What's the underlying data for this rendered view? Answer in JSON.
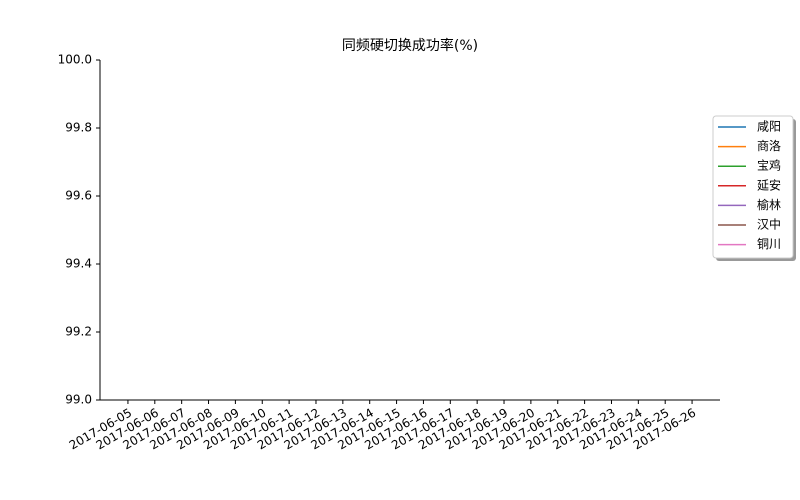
{
  "chart_data": {
    "type": "line",
    "title": "同频硬切换成功率(%)",
    "categories": [
      "2017-06-05",
      "2017-06-06",
      "2017-06-07",
      "2017-06-08",
      "2017-06-09",
      "2017-06-10",
      "2017-06-11",
      "2017-06-12",
      "2017-06-13",
      "2017-06-14",
      "2017-06-15",
      "2017-06-16",
      "2017-06-17",
      "2017-06-18",
      "2017-06-19",
      "2017-06-20",
      "2017-06-21",
      "2017-06-22",
      "2017-06-23",
      "2017-06-24",
      "2017-06-25",
      "2017-06-26"
    ],
    "series": [
      {
        "name": "咸阳",
        "color": "#1f77b4",
        "values": [
          null,
          null,
          null,
          null,
          null,
          null,
          null,
          null,
          null,
          null,
          null,
          null,
          null,
          null,
          null,
          null,
          null,
          null,
          null,
          null,
          null,
          null
        ]
      },
      {
        "name": "商洛",
        "color": "#ff7f0e",
        "values": [
          null,
          null,
          null,
          null,
          null,
          null,
          null,
          null,
          null,
          null,
          null,
          null,
          null,
          null,
          null,
          null,
          null,
          null,
          null,
          null,
          null,
          null
        ]
      },
      {
        "name": "宝鸡",
        "color": "#2ca02c",
        "values": [
          null,
          null,
          null,
          null,
          null,
          null,
          null,
          null,
          null,
          null,
          null,
          null,
          null,
          null,
          null,
          null,
          null,
          null,
          null,
          null,
          null,
          null
        ]
      },
      {
        "name": "延安",
        "color": "#d62728",
        "values": [
          null,
          null,
          null,
          null,
          null,
          null,
          null,
          null,
          null,
          null,
          null,
          null,
          null,
          null,
          null,
          null,
          null,
          null,
          null,
          null,
          null,
          null
        ]
      },
      {
        "name": "榆林",
        "color": "#9467bd",
        "values": [
          null,
          null,
          null,
          null,
          null,
          null,
          null,
          null,
          null,
          null,
          null,
          null,
          null,
          null,
          null,
          null,
          null,
          null,
          null,
          null,
          null,
          null
        ]
      },
      {
        "name": "汉中",
        "color": "#8c564b",
        "values": [
          null,
          null,
          null,
          null,
          null,
          null,
          null,
          null,
          null,
          null,
          null,
          null,
          null,
          null,
          null,
          null,
          null,
          null,
          null,
          null,
          null,
          null
        ]
      },
      {
        "name": "铜川",
        "color": "#e377c2",
        "values": [
          null,
          null,
          null,
          null,
          null,
          null,
          null,
          null,
          null,
          null,
          null,
          null,
          null,
          null,
          null,
          null,
          null,
          null,
          null,
          null,
          null,
          null
        ]
      }
    ],
    "ylim": [
      99.0,
      100.0
    ],
    "yticks": [
      {
        "value": 99.0,
        "label": "99.0"
      },
      99.2,
      99.4,
      99.6,
      99.8,
      {
        "value": 100.0,
        "label": "100.0"
      }
    ],
    "legend": "right"
  }
}
